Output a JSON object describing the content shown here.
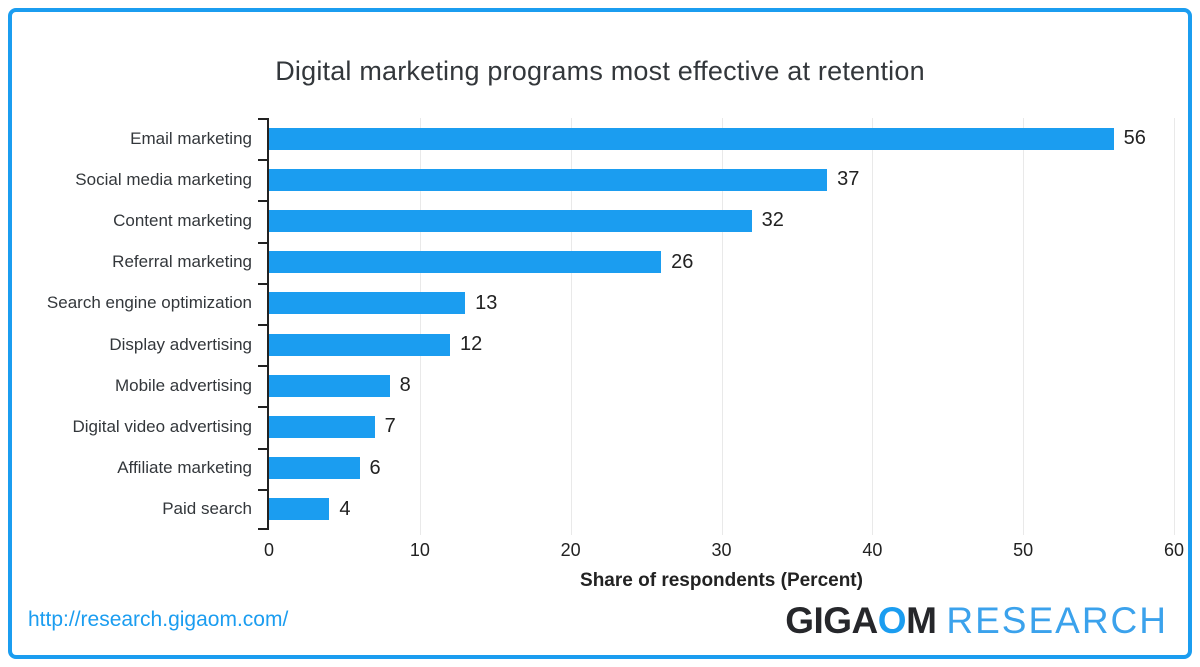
{
  "title": "Digital marketing programs most effective at retention",
  "chart_data": {
    "type": "bar",
    "orientation": "horizontal",
    "title": "Digital marketing programs most effective at retention",
    "categories": [
      "Email marketing",
      "Social media marketing",
      "Content marketing",
      "Referral marketing",
      "Search engine optimization",
      "Display advertising",
      "Mobile advertising",
      "Digital video advertising",
      "Affiliate marketing",
      "Paid search"
    ],
    "values": [
      56,
      37,
      32,
      26,
      13,
      12,
      8,
      7,
      6,
      4
    ],
    "xlabel": "Share of respondents (Percent)",
    "xlim": [
      0,
      60
    ],
    "xticks": [
      0,
      10,
      20,
      30,
      40,
      50,
      60
    ],
    "grid": "vertical-light-gray",
    "legend": "none",
    "bar_color": "#1b9df0"
  },
  "colors": {
    "accent_blue": "#1b9df0",
    "axis_dark": "#222222",
    "grid_gray": "#e9e9e9",
    "logo_dark": "#26272b"
  },
  "footer": {
    "url": "http://research.gigaom.com/",
    "logo": {
      "giga": "GIGA",
      "o": "O",
      "m": "M",
      "research": "RESEARCH"
    }
  }
}
